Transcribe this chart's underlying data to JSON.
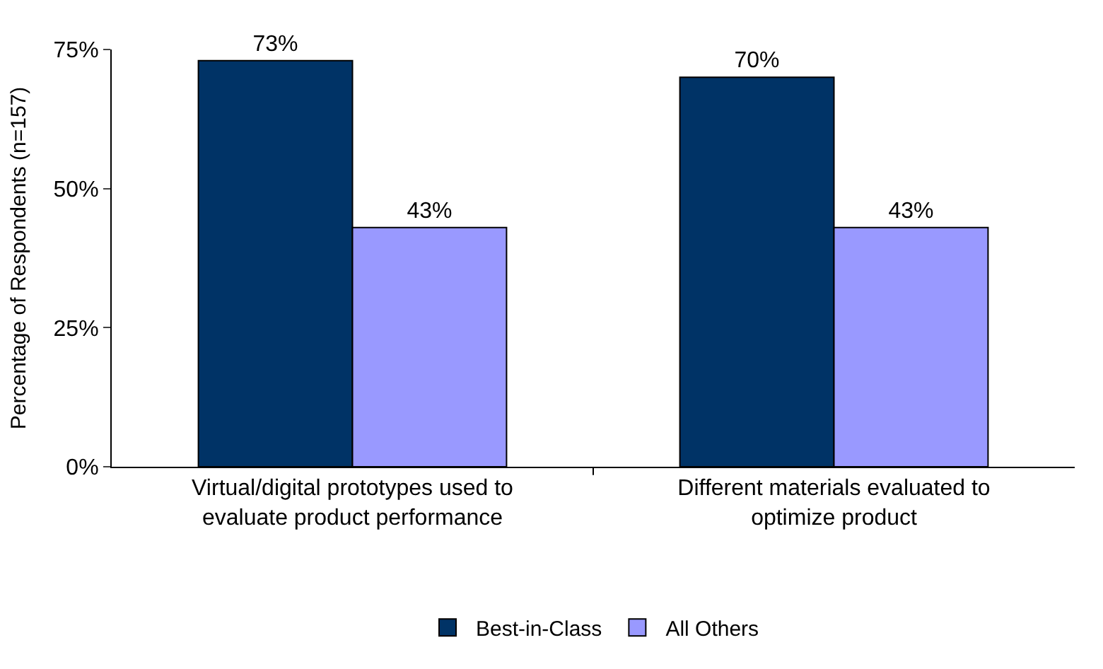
{
  "chart_data": {
    "type": "bar",
    "ylabel": "Percentage of Respondents (n=157)",
    "categories": [
      "Virtual/digital prototypes used to evaluate product performance",
      "Different materials evaluated to optimize product"
    ],
    "series": [
      {
        "name": "Best-in-Class",
        "color": "#003366",
        "values": [
          73,
          70
        ],
        "value_labels": [
          "73%",
          "70%"
        ]
      },
      {
        "name": "All Others",
        "color": "#9999ff",
        "values": [
          43,
          43
        ],
        "value_labels": [
          "43%",
          "43%"
        ]
      }
    ],
    "ylim": [
      0,
      75
    ],
    "yticks": [
      {
        "value": 0,
        "label": "0%"
      },
      {
        "value": 25,
        "label": "25%"
      },
      {
        "value": 50,
        "label": "50%"
      },
      {
        "value": 75,
        "label": "75%"
      }
    ],
    "grid": false,
    "legend": "bottom"
  }
}
